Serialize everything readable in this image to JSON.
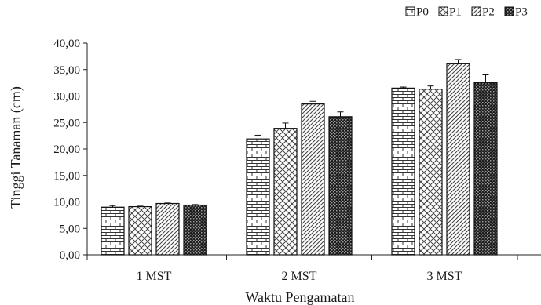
{
  "chart_data": {
    "type": "bar",
    "xlabel": "Waktu Pengamatan",
    "ylabel": "Tinggi Tanaman (cm)",
    "ylim": [
      0,
      40
    ],
    "yticks": [
      "0,00",
      "5,00",
      "10,00",
      "15,00",
      "20,00",
      "25,00",
      "30,00",
      "35,00",
      "40,00"
    ],
    "categories": [
      "1 MST",
      "2 MST",
      "3 MST"
    ],
    "series": [
      {
        "name": "P0",
        "values": [
          9.0,
          21.9,
          31.5
        ],
        "errors": [
          0.3,
          0.7,
          0.2
        ],
        "pattern": "brick"
      },
      {
        "name": "P1",
        "values": [
          9.1,
          23.9,
          31.3
        ],
        "errors": [
          0.1,
          1.0,
          0.6
        ],
        "pattern": "scales"
      },
      {
        "name": "P2",
        "values": [
          9.7,
          28.5,
          36.2
        ],
        "errors": [
          0.1,
          0.5,
          0.7
        ],
        "pattern": "diagonal"
      },
      {
        "name": "P3",
        "values": [
          9.4,
          26.1,
          32.5
        ],
        "errors": [
          0.1,
          0.9,
          1.5
        ],
        "pattern": "dots"
      }
    ],
    "legend_position": "top-right",
    "grid": false
  }
}
